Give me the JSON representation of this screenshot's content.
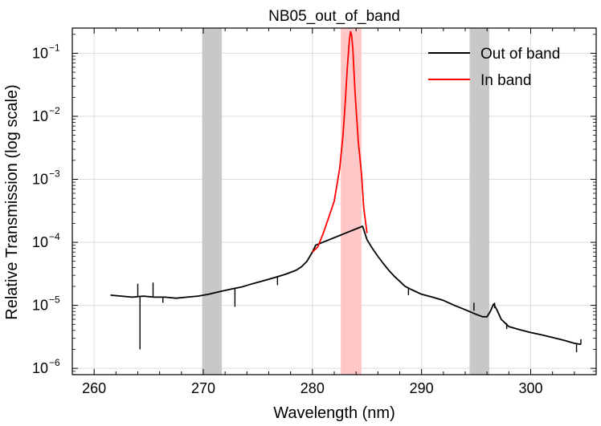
{
  "chart_data": {
    "type": "line",
    "title": "NB05_out_of_band",
    "xlabel": "Wavelength (nm)",
    "ylabel": "Relative Transmission (log scale)",
    "yscale": "log",
    "xlim": [
      258.0,
      306.0
    ],
    "ylim_log10": [
      -6.1,
      -0.6
    ],
    "grid": true,
    "legend_position": "top-right",
    "x_ticks": [
      {
        "value": 260,
        "label": "260"
      },
      {
        "value": 270,
        "label": "270"
      },
      {
        "value": 280,
        "label": "280"
      },
      {
        "value": 290,
        "label": "290"
      },
      {
        "value": 300,
        "label": "300"
      }
    ],
    "y_ticks": [
      {
        "log10": -6,
        "base": "10",
        "exp": "−6"
      },
      {
        "log10": -5,
        "base": "10",
        "exp": "−5"
      },
      {
        "log10": -4,
        "base": "10",
        "exp": "−4"
      },
      {
        "log10": -3,
        "base": "10",
        "exp": "−3"
      },
      {
        "log10": -2,
        "base": "10",
        "exp": "−2"
      },
      {
        "log10": -1,
        "base": "10",
        "exp": "−1"
      }
    ],
    "shaded_regions": [
      {
        "x0": 269.9,
        "x1": 271.7,
        "color": "#c8c8c8",
        "name": "left-sideband"
      },
      {
        "x0": 282.6,
        "x1": 284.5,
        "color": "#ffc8c8",
        "name": "in-band"
      },
      {
        "x0": 294.4,
        "x1": 296.2,
        "color": "#c8c8c8",
        "name": "right-sideband"
      }
    ],
    "series": [
      {
        "name": "Out of band",
        "color": "#000000",
        "x": [
          261.5,
          262.5,
          263.5,
          264.5,
          265.5,
          266.5,
          267.5,
          268.5,
          269.5,
          270.5,
          271.5,
          272.5,
          273.5,
          274.5,
          275.5,
          276.5,
          277.5,
          278.5,
          279.0,
          279.5,
          280.0,
          280.3,
          284.6,
          285.0,
          285.5,
          286.0,
          286.5,
          287.0,
          287.5,
          288.0,
          288.5,
          289.0,
          290.0,
          291.0,
          292.0,
          293.0,
          294.0,
          295.0,
          295.6,
          296.0,
          296.3,
          296.6,
          296.9,
          297.3,
          298.0,
          299.0,
          300.0,
          301.0,
          302.0,
          303.0,
          304.0,
          304.6
        ],
        "y": [
          1.45e-05,
          1.4e-05,
          1.35e-05,
          1.4e-05,
          1.35e-05,
          1.35e-05,
          1.3e-05,
          1.35e-05,
          1.4e-05,
          1.5e-05,
          1.65e-05,
          1.8e-05,
          1.95e-05,
          2.2e-05,
          2.45e-05,
          2.75e-05,
          3.1e-05,
          3.6e-05,
          4.1e-05,
          5e-05,
          7e-05,
          9e-05,
          0.00018,
          0.00011,
          8e-05,
          6e-05,
          4.6e-05,
          3.6e-05,
          2.9e-05,
          2.4e-05,
          2e-05,
          1.8e-05,
          1.5e-05,
          1.35e-05,
          1.2e-05,
          1e-05,
          8.5e-06,
          7.2e-06,
          6.6e-06,
          6.6e-06,
          8e-06,
          1.05e-05,
          8.5e-06,
          6e-06,
          4.6e-06,
          4.1e-06,
          3.7e-06,
          3.4e-06,
          3.1e-06,
          2.8e-06,
          2.5e-06,
          2.4e-06
        ]
      },
      {
        "name": "In band",
        "color": "#ff0000",
        "x": [
          280.0,
          280.5,
          281.0,
          281.5,
          282.0,
          282.5,
          282.8,
          283.0,
          283.2,
          283.4,
          283.5,
          283.6,
          283.7,
          283.9,
          284.2,
          284.5,
          284.7,
          285.0
        ],
        "y": [
          7e-05,
          8.5e-05,
          0.00014,
          0.00025,
          0.00045,
          0.0015,
          0.005,
          0.016,
          0.06,
          0.17,
          0.22,
          0.19,
          0.12,
          0.025,
          0.004,
          0.0012,
          0.00035,
          0.00014
        ]
      }
    ],
    "spikes": [
      {
        "x": 264.0,
        "y_from": 1.35e-05,
        "y_to": 2.2e-05
      },
      {
        "x": 264.2,
        "y_from": 1.35e-05,
        "y_to": 2e-06
      },
      {
        "x": 265.4,
        "y_from": 1.35e-05,
        "y_to": 2.3e-05
      },
      {
        "x": 266.3,
        "y_from": 1.35e-05,
        "y_to": 1.1e-05
      },
      {
        "x": 272.9,
        "y_from": 1.85e-05,
        "y_to": 9.5e-06
      },
      {
        "x": 276.8,
        "y_from": 2.9e-05,
        "y_to": 2.1e-05
      },
      {
        "x": 288.8,
        "y_from": 1.9e-05,
        "y_to": 1.45e-05
      },
      {
        "x": 294.8,
        "y_from": 8.2e-06,
        "y_to": 1.1e-05
      },
      {
        "x": 296.7,
        "y_from": 9e-06,
        "y_to": 1.1e-05
      },
      {
        "x": 297.8,
        "y_from": 5.2e-06,
        "y_to": 4.2e-06
      },
      {
        "x": 304.2,
        "y_from": 2.5e-06,
        "y_to": 1.8e-06
      },
      {
        "x": 304.6,
        "y_from": 2.4e-06,
        "y_to": 2.9e-06
      }
    ]
  }
}
